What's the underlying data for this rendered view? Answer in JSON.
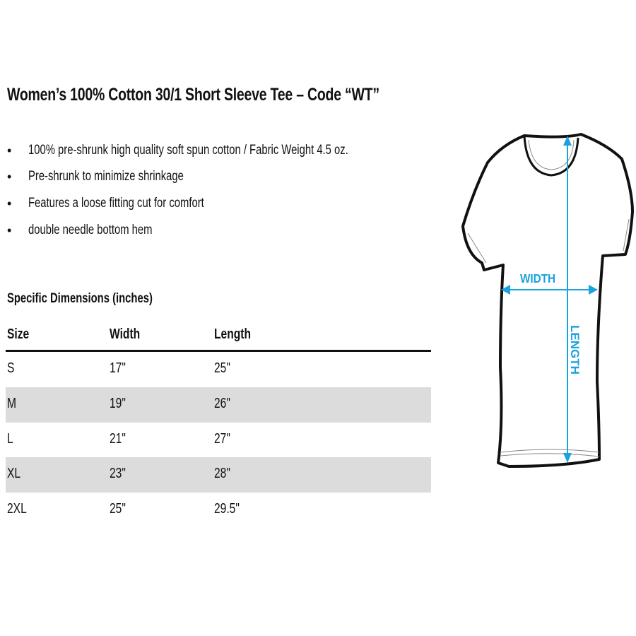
{
  "title": "Women’s 100% Cotton 30/1 Short Sleeve Tee – Code “WT”",
  "features": [
    "100% pre-shrunk high quality soft spun cotton / Fabric Weight 4.5 oz.",
    "Pre-shrunk to minimize shrinkage",
    "Features a loose fitting cut for comfort",
    "double needle bottom hem"
  ],
  "bullet": "•",
  "dimensions_heading": "Specific Dimensions (inches)",
  "table": {
    "headers": [
      "Size",
      "Width",
      "Length"
    ],
    "rows": [
      [
        "S",
        "17\"",
        "25\""
      ],
      [
        "M",
        "19\"",
        "26\""
      ],
      [
        "L",
        "21\"",
        "27\""
      ],
      [
        "XL",
        "23\"",
        "28\""
      ],
      [
        "2XL",
        "25\"",
        "29.5\""
      ]
    ]
  },
  "diagram": {
    "width_label": "WIDTH",
    "length_label": "LENGTH",
    "accent_color": "#1aa3dc"
  }
}
